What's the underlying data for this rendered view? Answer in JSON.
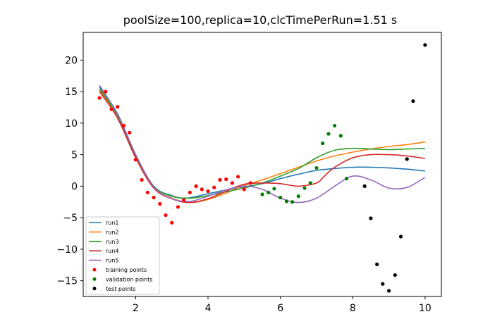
{
  "chart_data": {
    "type": "line",
    "title": "poolSize=100,replica=10,clcTimePerRun=1.51 s",
    "xlabel": "",
    "ylabel": "",
    "xlim": [
      0.55,
      10.45
    ],
    "ylim": [
      -17.5,
      24.4
    ],
    "xticks": [
      2,
      4,
      6,
      8,
      10
    ],
    "yticks": [
      -15,
      -10,
      -5,
      0,
      5,
      10,
      15,
      20
    ],
    "grid": false,
    "legend_position": "lower-left",
    "series": [
      {
        "name": "run1",
        "color": "#1f77b4",
        "x": [
          1,
          1.5,
          2,
          2.5,
          3,
          3.4,
          4,
          4.5,
          5,
          5.5,
          6,
          6.5,
          7,
          7.5,
          8,
          8.5,
          9,
          9.5,
          10
        ],
        "y": [
          15.8,
          11.5,
          5.0,
          0.0,
          -1.5,
          -1.9,
          -1.2,
          -0.6,
          -0.1,
          0.4,
          1.2,
          1.9,
          2.5,
          2.8,
          3.0,
          3.0,
          2.9,
          2.7,
          2.4
        ]
      },
      {
        "name": "run2",
        "color": "#ff7f0e",
        "x": [
          1,
          1.5,
          2,
          2.5,
          3,
          3.5,
          4,
          4.5,
          5,
          5.5,
          6,
          6.5,
          7,
          7.5,
          8,
          8.5,
          9,
          9.5,
          10
        ],
        "y": [
          15.2,
          11.0,
          4.6,
          -0.2,
          -1.9,
          -2.6,
          -2.1,
          -1.1,
          0.1,
          1.0,
          2.0,
          3.0,
          4.0,
          4.8,
          5.4,
          5.9,
          6.3,
          6.6,
          7.0
        ]
      },
      {
        "name": "run3",
        "color": "#2ca02c",
        "x": [
          1,
          1.5,
          2,
          2.5,
          3,
          3.5,
          4,
          4.5,
          5,
          5.5,
          6,
          6.5,
          7,
          7.5,
          8,
          8.5,
          9,
          9.5,
          10
        ],
        "y": [
          15.5,
          11.2,
          4.8,
          0.0,
          -1.6,
          -1.9,
          -1.5,
          -0.9,
          -0.3,
          0.5,
          1.6,
          2.8,
          4.5,
          5.7,
          6.0,
          5.9,
          5.8,
          5.9,
          6.0
        ]
      },
      {
        "name": "run4",
        "color": "#d62728",
        "x": [
          1,
          1.5,
          2,
          2.5,
          3,
          3.5,
          4,
          4.5,
          5,
          5.5,
          6,
          6.5,
          7,
          7.2,
          7.5,
          8,
          8.5,
          9,
          9.5,
          10
        ],
        "y": [
          15.0,
          10.8,
          4.5,
          -0.3,
          -2.0,
          -2.6,
          -2.0,
          -0.8,
          0.3,
          0.5,
          0.4,
          0.0,
          0.5,
          1.5,
          3.0,
          4.5,
          5.0,
          5.0,
          4.8,
          4.4
        ]
      },
      {
        "name": "run5",
        "color": "#9467bd",
        "x": [
          1,
          1.5,
          2,
          2.5,
          3,
          3.5,
          4,
          4.5,
          5,
          5.5,
          6,
          6.5,
          7,
          7.5,
          8,
          8.5,
          9,
          9.5,
          10
        ],
        "y": [
          16.0,
          11.4,
          5.0,
          -0.1,
          -2.0,
          -2.4,
          -1.6,
          -0.6,
          0.0,
          -0.5,
          -1.9,
          -2.6,
          -1.9,
          0.0,
          1.6,
          1.0,
          -0.3,
          -0.2,
          1.4
        ]
      },
      {
        "name": "training points",
        "marker": "scatter",
        "color": "#ff0000",
        "x": [
          1,
          1.17,
          1.33,
          1.5,
          1.67,
          1.83,
          2,
          2.17,
          2.33,
          2.5,
          2.67,
          2.83,
          3,
          3.17,
          3.33,
          3.5,
          3.67,
          3.83,
          4,
          4.17,
          4.33,
          4.5,
          4.67,
          4.83,
          5,
          5.17
        ],
        "y": [
          14.0,
          15.0,
          12.2,
          12.6,
          9.6,
          8.5,
          4.2,
          1.0,
          -1.0,
          -1.8,
          -2.8,
          -4.6,
          -5.8,
          -3.3,
          -2.2,
          -1.0,
          0.0,
          -0.5,
          -0.8,
          -0.2,
          1.0,
          1.1,
          0.5,
          1.5,
          -0.5,
          0.5
        ]
      },
      {
        "name": "validation points",
        "marker": "scatter",
        "color": "#008000",
        "x": [
          5.5,
          5.67,
          5.83,
          6,
          6.17,
          6.33,
          6.5,
          6.67,
          6.83,
          7,
          7.17,
          7.33,
          7.5,
          7.67,
          7.83
        ],
        "y": [
          -1.3,
          -1.0,
          -0.4,
          -1.8,
          -2.4,
          -2.5,
          -1.6,
          -0.3,
          0.5,
          2.9,
          6.8,
          8.3,
          9.6,
          8.0,
          1.2
        ]
      },
      {
        "name": "test points",
        "marker": "scatter",
        "color": "#000000",
        "x": [
          8.33,
          8.5,
          8.67,
          8.83,
          9,
          9.17,
          9.33,
          9.5,
          9.67,
          10
        ],
        "y": [
          0.0,
          -5.1,
          -12.4,
          -15.5,
          -16.6,
          -14.1,
          -8.0,
          4.3,
          13.5,
          22.4
        ]
      }
    ]
  }
}
